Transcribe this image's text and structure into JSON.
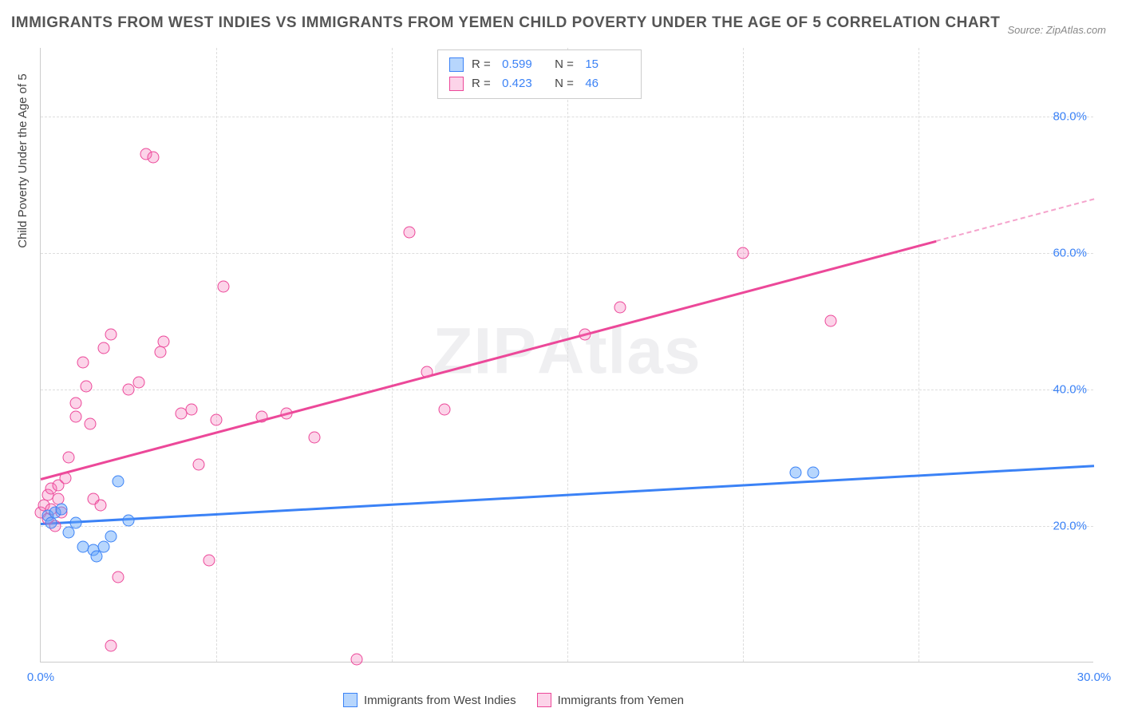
{
  "title": "IMMIGRANTS FROM WEST INDIES VS IMMIGRANTS FROM YEMEN CHILD POVERTY UNDER THE AGE OF 5 CORRELATION CHART",
  "source": "Source: ZipAtlas.com",
  "ylabel": "Child Poverty Under the Age of 5",
  "watermark_a": "ZIP",
  "watermark_b": "Atlas",
  "chart": {
    "type": "scatter",
    "xlim": [
      0,
      30
    ],
    "ylim": [
      0,
      90
    ],
    "x_ticks": [
      0,
      30
    ],
    "x_tick_labels": [
      "0.0%",
      "30.0%"
    ],
    "y_ticks": [
      20,
      40,
      60,
      80
    ],
    "y_tick_labels": [
      "20.0%",
      "40.0%",
      "60.0%",
      "80.0%"
    ],
    "x_gridlines": [
      5,
      10,
      15,
      20,
      25
    ],
    "background_color": "#ffffff",
    "grid_color": "#dddddd",
    "axis_color": "#cccccc",
    "series": [
      {
        "name": "Immigrants from West Indies",
        "color_fill": "rgba(96,165,250,0.45)",
        "color_stroke": "#3b82f6",
        "marker_size": 15,
        "R": "0.599",
        "N": "15",
        "trend": {
          "x1": 0,
          "y1": 20.5,
          "x2": 30,
          "y2": 29
        },
        "points": [
          [
            0.2,
            21.5
          ],
          [
            0.3,
            20.5
          ],
          [
            0.4,
            22
          ],
          [
            0.6,
            22.5
          ],
          [
            0.8,
            19
          ],
          [
            1.0,
            20.5
          ],
          [
            1.2,
            17
          ],
          [
            1.5,
            16.5
          ],
          [
            1.6,
            15.5
          ],
          [
            1.8,
            17
          ],
          [
            2.0,
            18.5
          ],
          [
            2.2,
            26.5
          ],
          [
            2.5,
            20.8
          ],
          [
            21.5,
            27.8
          ],
          [
            22.0,
            27.8
          ]
        ]
      },
      {
        "name": "Immigrants from Yemen",
        "color_fill": "rgba(244,114,182,0.3)",
        "color_stroke": "#ec4899",
        "marker_size": 15,
        "R": "0.423",
        "N": "46",
        "trend": {
          "x1": 0,
          "y1": 27,
          "x2": 30,
          "y2": 68
        },
        "trend_dash_start_x": 25.5,
        "points": [
          [
            0.0,
            22
          ],
          [
            0.1,
            23
          ],
          [
            0.2,
            21
          ],
          [
            0.2,
            24.5
          ],
          [
            0.3,
            25.5
          ],
          [
            0.3,
            22.5
          ],
          [
            0.4,
            20
          ],
          [
            0.5,
            26
          ],
          [
            0.5,
            24
          ],
          [
            0.6,
            22
          ],
          [
            0.7,
            27
          ],
          [
            0.8,
            30
          ],
          [
            1.0,
            38
          ],
          [
            1.0,
            36
          ],
          [
            1.2,
            44
          ],
          [
            1.3,
            40.5
          ],
          [
            1.4,
            35
          ],
          [
            1.5,
            24
          ],
          [
            1.7,
            23
          ],
          [
            1.8,
            46
          ],
          [
            2.0,
            48
          ],
          [
            2.2,
            12.5
          ],
          [
            2.5,
            40
          ],
          [
            2.8,
            41
          ],
          [
            3.0,
            74.5
          ],
          [
            3.2,
            74
          ],
          [
            3.4,
            45.5
          ],
          [
            3.5,
            47
          ],
          [
            4.0,
            36.5
          ],
          [
            4.3,
            37
          ],
          [
            4.5,
            29
          ],
          [
            4.8,
            15
          ],
          [
            5.0,
            35.5
          ],
          [
            5.2,
            55
          ],
          [
            6.3,
            36
          ],
          [
            7.0,
            36.5
          ],
          [
            7.8,
            33
          ],
          [
            9.0,
            0.5
          ],
          [
            10.5,
            63
          ],
          [
            11.0,
            42.5
          ],
          [
            15.5,
            48
          ],
          [
            16.5,
            52
          ],
          [
            2.0,
            2.5
          ],
          [
            20.0,
            60
          ],
          [
            22.5,
            50
          ],
          [
            11.5,
            37
          ]
        ]
      }
    ]
  },
  "legend": {
    "items": [
      "Immigrants from West Indies",
      "Immigrants from Yemen"
    ]
  },
  "colors": {
    "tick_text": "#3b82f6",
    "label_text": "#444444",
    "title_text": "#555555"
  },
  "font": {
    "title_size": 19,
    "tick_size": 15,
    "label_size": 15
  }
}
